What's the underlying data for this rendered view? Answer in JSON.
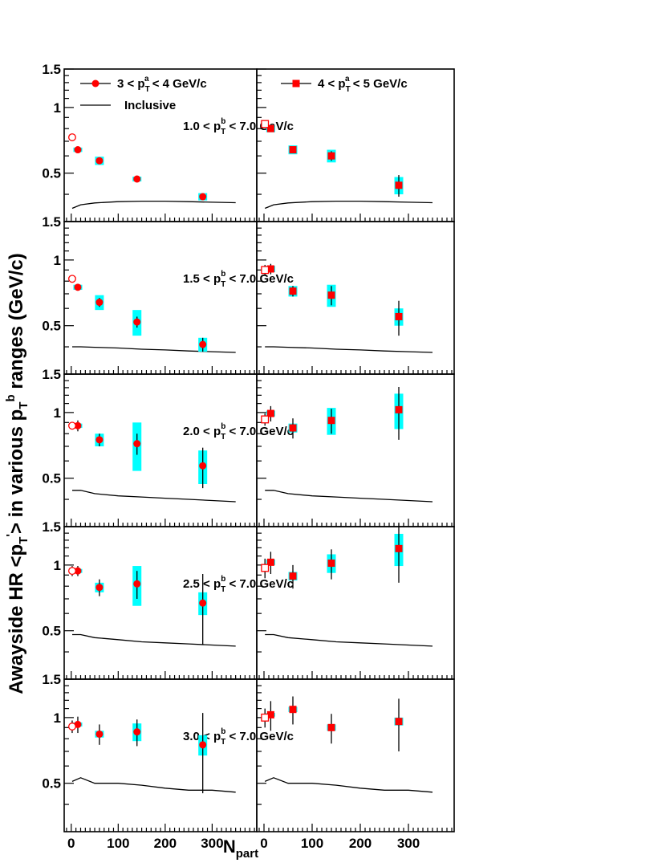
{
  "figure": {
    "ylabel_main": "Awayside HR <p",
    "ylabel_tail": "> in various p",
    "ylabel_units": " ranges (GeV/c)",
    "ylabel_sub1": "T",
    "ylabel_sup1": "'",
    "ylabel_sub2": "T",
    "ylabel_sup2": "b",
    "xlabel": "N",
    "xlabel_sub": "part"
  },
  "legend": {
    "left_pre": "3 < p",
    "left_sub": "T",
    "left_sup": "a",
    "left_post": " < 4 GeV/c",
    "right_pre": "4 < p",
    "right_sub": "T",
    "right_sup": "a",
    "right_post": " < 5 GeV/c",
    "inclusive": "Inclusive"
  },
  "colors": {
    "marker": "#ff0000",
    "systematic_band": "#00ffff",
    "open_marker": "#ff0000"
  },
  "chart_data": {
    "type": "scatter",
    "xlabel": "N_part",
    "ylabel": "Awayside HR <p_T'> in various p_T^b ranges (GeV/c)",
    "xlim": [
      -15,
      395
    ],
    "ylim": [
      0.3,
      1.5
    ],
    "x_ticks": [
      "0",
      "100",
      "200",
      "300"
    ],
    "y_ticks": [
      "0.5",
      "1",
      "1.5"
    ],
    "columns": [
      "3 < pT^a < 4 GeV/c",
      "4 < pT^a < 5 GeV/c"
    ],
    "rows": [
      {
        "label_pre": "1.0 < p",
        "label_sub": "T",
        "label_sup": "b",
        "label_post": " < 7.0 GeV/c",
        "inclusive_x": [
          2,
          20,
          50,
          100,
          150,
          200,
          250,
          300,
          350
        ],
        "inclusive_y": [
          [
            0.345,
            0.358,
            0.365,
            0.37,
            0.372,
            0.372,
            0.37,
            0.368,
            0.366
          ],
          [
            0.345,
            0.358,
            0.365,
            0.37,
            0.372,
            0.372,
            0.37,
            0.368,
            0.366
          ]
        ],
        "open": [
          {
            "x": 2,
            "y": 0.73,
            "err": 0
          },
          {
            "x": 2,
            "y": 0.84,
            "err": 0
          }
        ],
        "points": [
          [
            {
              "x": 14,
              "y": 0.64,
              "err": 0.01,
              "sys": 0.015
            },
            {
              "x": 60,
              "y": 0.57,
              "err": 0.01,
              "sys": 0.025
            },
            {
              "x": 140,
              "y": 0.47,
              "err": 0.01,
              "sys": 0.012
            },
            {
              "x": 280,
              "y": 0.39,
              "err": 0.01,
              "sys": 0.015
            }
          ],
          [
            {
              "x": 14,
              "y": 0.8,
              "err": 0.02,
              "sys": 0.03
            },
            {
              "x": 60,
              "y": 0.64,
              "err": 0.02,
              "sys": 0.03
            },
            {
              "x": 140,
              "y": 0.6,
              "err": 0.03,
              "sys": 0.04
            },
            {
              "x": 280,
              "y": 0.44,
              "err": 0.05,
              "sys": 0.04
            }
          ]
        ]
      },
      {
        "label_pre": "1.5 < p",
        "label_sub": "T",
        "label_sup": "b",
        "label_post": " < 7.0 GeV/c",
        "inclusive_x": [
          2,
          20,
          50,
          100,
          150,
          200,
          250,
          300,
          350
        ],
        "inclusive_y": [
          [
            0.4,
            0.4,
            0.398,
            0.395,
            0.39,
            0.387,
            0.383,
            0.38,
            0.377
          ],
          [
            0.4,
            0.4,
            0.398,
            0.395,
            0.39,
            0.387,
            0.383,
            0.38,
            0.377
          ]
        ],
        "open": [
          {
            "x": 2,
            "y": 0.82,
            "err": 0
          },
          {
            "x": 2,
            "y": 0.9,
            "err": 0.05
          }
        ],
        "points": [
          [
            {
              "x": 14,
              "y": 0.75,
              "err": 0.02,
              "sys": 0.02
            },
            {
              "x": 60,
              "y": 0.64,
              "err": 0.03,
              "sys": 0.05
            },
            {
              "x": 140,
              "y": 0.52,
              "err": 0.03,
              "sys": 0.07
            },
            {
              "x": 280,
              "y": 0.41,
              "err": 0.03,
              "sys": 0.03
            }
          ],
          [
            {
              "x": 14,
              "y": 0.91,
              "err": 0.05,
              "sys": 0.03
            },
            {
              "x": 60,
              "y": 0.72,
              "err": 0.04,
              "sys": 0.04
            },
            {
              "x": 140,
              "y": 0.69,
              "err": 0.07,
              "sys": 0.08
            },
            {
              "x": 280,
              "y": 0.55,
              "err": 0.1,
              "sys": 0.05
            }
          ]
        ]
      },
      {
        "label_pre": "2.0 < p",
        "label_sub": "T",
        "label_sup": "b",
        "label_post": " < 7.0 GeV/c",
        "inclusive_x": [
          2,
          20,
          50,
          100,
          150,
          200,
          250,
          300,
          350
        ],
        "inclusive_y": [
          [
            0.44,
            0.44,
            0.425,
            0.415,
            0.41,
            0.405,
            0.4,
            0.395,
            0.39
          ],
          [
            0.44,
            0.44,
            0.425,
            0.415,
            0.41,
            0.405,
            0.4,
            0.395,
            0.39
          ]
        ],
        "open": [
          {
            "x": 2,
            "y": 0.87,
            "err": 0.03
          },
          {
            "x": 2,
            "y": 0.93,
            "err": 0.06
          }
        ],
        "points": [
          [
            {
              "x": 14,
              "y": 0.87,
              "err": 0.05,
              "sys": 0.02
            },
            {
              "x": 60,
              "y": 0.75,
              "err": 0.05,
              "sys": 0.05
            },
            {
              "x": 140,
              "y": 0.72,
              "err": 0.08,
              "sys": 0.18
            },
            {
              "x": 280,
              "y": 0.57,
              "err": 0.12,
              "sys": 0.1
            }
          ],
          [
            {
              "x": 14,
              "y": 0.99,
              "err": 0.08,
              "sys": 0.03
            },
            {
              "x": 60,
              "y": 0.85,
              "err": 0.09,
              "sys": 0.04
            },
            {
              "x": 140,
              "y": 0.92,
              "err": 0.12,
              "sys": 0.13
            },
            {
              "x": 280,
              "y": 1.03,
              "err": 0.28,
              "sys": 0.19
            }
          ]
        ]
      },
      {
        "label_pre": "2.5 < p",
        "label_sub": "T",
        "label_sup": "b",
        "label_post": " < 7.0 GeV/c",
        "inclusive_x": [
          2,
          20,
          50,
          100,
          150,
          200,
          250,
          300,
          350
        ],
        "inclusive_y": [
          [
            0.48,
            0.48,
            0.465,
            0.455,
            0.445,
            0.44,
            0.435,
            0.43,
            0.425
          ],
          [
            0.48,
            0.48,
            0.465,
            0.455,
            0.445,
            0.44,
            0.435,
            0.43,
            0.425
          ]
        ],
        "open": [
          {
            "x": 2,
            "y": 0.94,
            "err": 0.05
          },
          {
            "x": 2,
            "y": 0.97,
            "err": 0.1
          }
        ],
        "points": [
          [
            {
              "x": 14,
              "y": 0.94,
              "err": 0.05,
              "sys": 0.02
            },
            {
              "x": 60,
              "y": 0.79,
              "err": 0.07,
              "sys": 0.04
            },
            {
              "x": 140,
              "y": 0.82,
              "err": 0.12,
              "sys": 0.17
            },
            {
              "x": 280,
              "y": 0.67,
              "err": 0.24,
              "sys": 0.08
            }
          ],
          [
            {
              "x": 14,
              "y": 1.03,
              "err": 0.12,
              "sys": 0.03
            },
            {
              "x": 60,
              "y": 0.89,
              "err": 0.11,
              "sys": 0.04
            },
            {
              "x": 140,
              "y": 1.02,
              "err": 0.16,
              "sys": 0.1
            },
            {
              "x": 280,
              "y": 1.19,
              "err": 0.36,
              "sys": 0.2
            }
          ]
        ]
      },
      {
        "label_pre": "3.0 < p",
        "label_sub": "T",
        "label_sup": "b",
        "label_post": " < 7.0 GeV/c",
        "inclusive_x": [
          2,
          20,
          50,
          100,
          150,
          200,
          250,
          300,
          350
        ],
        "inclusive_y": [
          [
            0.51,
            0.53,
            0.5,
            0.5,
            0.49,
            0.475,
            0.465,
            0.465,
            0.455
          ],
          [
            0.51,
            0.53,
            0.5,
            0.5,
            0.49,
            0.475,
            0.465,
            0.465,
            0.455
          ]
        ],
        "open": [
          {
            "x": 2,
            "y": 0.91,
            "err": 0.06
          },
          {
            "x": 2,
            "y": 1.0,
            "err": 0.1
          }
        ],
        "points": [
          [
            {
              "x": 14,
              "y": 0.93,
              "err": 0.08,
              "sys": 0.02
            },
            {
              "x": 60,
              "y": 0.84,
              "err": 0.09,
              "sys": 0.03
            },
            {
              "x": 140,
              "y": 0.86,
              "err": 0.12,
              "sys": 0.08
            },
            {
              "x": 280,
              "y": 0.75,
              "err": 0.3,
              "sys": 0.08
            }
          ],
          [
            {
              "x": 14,
              "y": 1.03,
              "err": 0.16,
              "sys": 0.02
            },
            {
              "x": 60,
              "y": 1.09,
              "err": 0.16,
              "sys": 0.03
            },
            {
              "x": 140,
              "y": 0.9,
              "err": 0.14,
              "sys": 0.03
            },
            {
              "x": 280,
              "y": 0.96,
              "err": 0.26,
              "sys": 0.04
            }
          ]
        ]
      }
    ]
  }
}
